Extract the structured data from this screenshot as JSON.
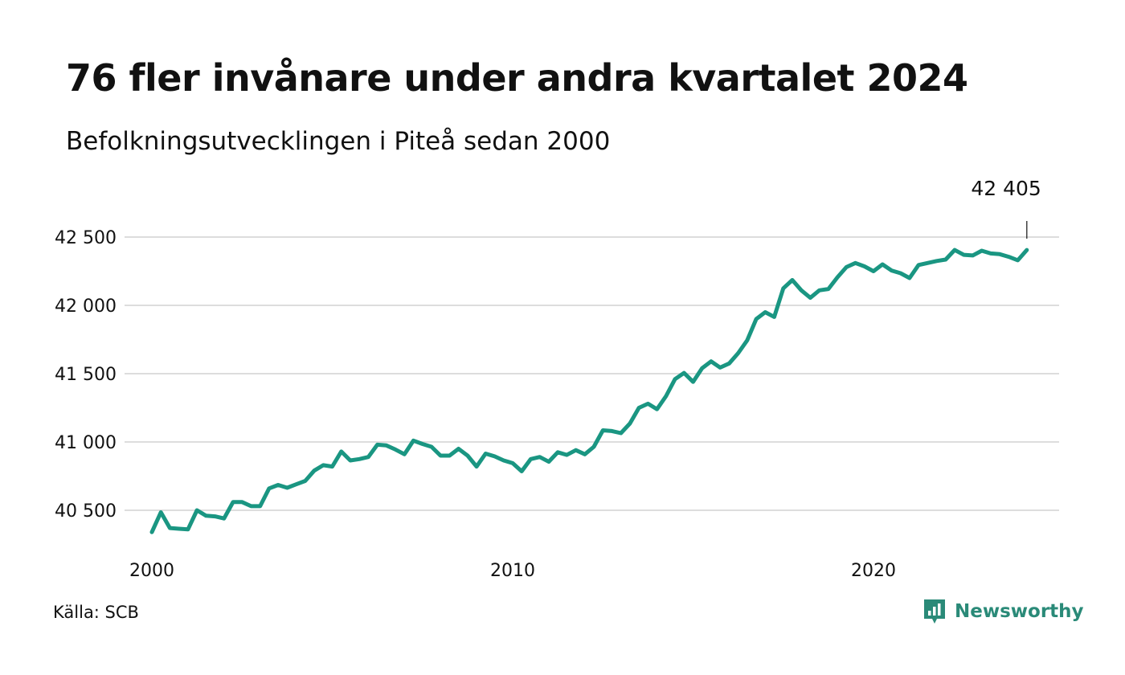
{
  "title": "76 fler invånare under andra kvartalet 2024",
  "subtitle": "Befolkningsutvecklingen i Piteå sedan 2000",
  "source": "Källa: SCB",
  "brand": {
    "name": "Newsworthy",
    "icon": "newsworthy-logo-icon",
    "color": "#2a8a78"
  },
  "colors": {
    "line": "#1a9682",
    "grid": "#dddddd",
    "text": "#111111"
  },
  "chart_data": {
    "type": "line",
    "title": "76 fler invånare under andra kvartalet 2024",
    "subtitle": "Befolkningsutvecklingen i Piteå sedan 2000",
    "xlabel": "",
    "ylabel": "",
    "x_start": 2000.0,
    "x_step": 0.25,
    "xlim": [
      2000,
      2025
    ],
    "ylim": [
      40350,
      42500
    ],
    "x_ticks": [
      {
        "value": 2000,
        "label": "2000"
      },
      {
        "value": 2010,
        "label": "2010"
      },
      {
        "value": 2020,
        "label": "2020"
      }
    ],
    "y_ticks": [
      {
        "value": 40500,
        "label": "40 500"
      },
      {
        "value": 41000,
        "label": "41 000"
      },
      {
        "value": 41500,
        "label": "41 500"
      },
      {
        "value": 42000,
        "label": "42 000"
      },
      {
        "value": 42500,
        "label": "42 500"
      }
    ],
    "grid": true,
    "series": [
      {
        "values": [
          40340,
          40485,
          40370,
          40365,
          40360,
          40500,
          40460,
          40455,
          40440,
          40560,
          40560,
          40530,
          40530,
          40660,
          40685,
          40665,
          40690,
          40715,
          40790,
          40830,
          40820,
          40930,
          40865,
          40875,
          40890,
          40980,
          40975,
          40945,
          40910,
          41010,
          40985,
          40965,
          40900,
          40900,
          40950,
          40900,
          40820,
          40915,
          40895,
          40865,
          40845,
          40785,
          40875,
          40890,
          40855,
          40925,
          40905,
          40940,
          40910,
          40965,
          41085,
          41080,
          41065,
          41135,
          41250,
          41280,
          41240,
          41335,
          41460,
          41505,
          41440,
          41540,
          41590,
          41545,
          41575,
          41650,
          41745,
          41900,
          41950,
          41915,
          42125,
          42185,
          42110,
          42055,
          42110,
          42120,
          42205,
          42280,
          42310,
          42285,
          42250,
          42300,
          42255,
          42235,
          42200,
          42295,
          42310,
          42325,
          42335,
          42405,
          42370,
          42365,
          42400,
          42380,
          42375,
          42355,
          42330,
          42405
        ]
      }
    ],
    "annotations": [
      {
        "label": "42 405",
        "x": 2024.25,
        "y": 42405
      }
    ]
  }
}
